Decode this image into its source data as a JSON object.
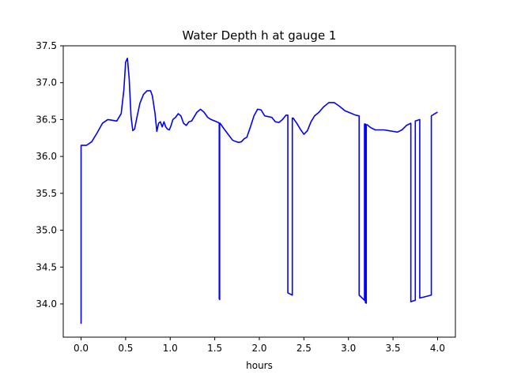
{
  "chart_data": {
    "type": "line",
    "title": "Water Depth h at gauge 1",
    "xlabel": "hours",
    "ylabel": "",
    "xlim": [
      -0.2,
      4.2
    ],
    "ylim": [
      33.55,
      37.5
    ],
    "xticks": [
      0.0,
      0.5,
      1.0,
      1.5,
      2.0,
      2.5,
      3.0,
      3.5,
      4.0
    ],
    "xtick_labels": [
      "0.0",
      "0.5",
      "1.0",
      "1.5",
      "2.0",
      "2.5",
      "3.0",
      "3.5",
      "4.0"
    ],
    "yticks": [
      34.0,
      34.5,
      35.0,
      35.5,
      36.0,
      36.5,
      37.0,
      37.5
    ],
    "ytick_labels": [
      "34.0",
      "34.5",
      "35.0",
      "35.5",
      "36.0",
      "36.5",
      "37.0",
      "37.5"
    ],
    "grid": false,
    "series": [
      {
        "color": "#0000ff",
        "x": [
          0.0,
          0.0,
          0.06,
          0.12,
          0.18,
          0.24,
          0.3,
          0.35,
          0.4,
          0.45,
          0.48,
          0.5,
          0.52,
          0.54,
          0.56,
          0.58,
          0.6,
          0.63,
          0.66,
          0.7,
          0.74,
          0.78,
          0.8,
          0.83,
          0.85,
          0.87,
          0.89,
          0.91,
          0.93,
          0.95,
          0.97,
          0.99,
          1.01,
          1.03,
          1.06,
          1.09,
          1.12,
          1.15,
          1.18,
          1.21,
          1.24,
          1.27,
          1.3,
          1.34,
          1.38,
          1.42,
          1.46,
          1.5,
          1.54,
          1.55,
          1.55,
          1.555,
          1.555,
          1.56,
          1.6,
          1.65,
          1.7,
          1.74,
          1.77,
          1.8,
          1.83,
          1.86,
          1.9,
          1.94,
          1.98,
          2.02,
          2.06,
          2.1,
          2.14,
          2.18,
          2.22,
          2.26,
          2.3,
          2.32,
          2.32,
          2.37,
          2.37,
          2.38,
          2.42,
          2.46,
          2.5,
          2.54,
          2.58,
          2.62,
          2.67,
          2.72,
          2.78,
          2.84,
          2.9,
          2.96,
          3.02,
          3.08,
          3.12,
          3.12,
          3.18,
          3.18,
          3.19,
          3.19,
          3.2,
          3.2,
          3.21,
          3.25,
          3.3,
          3.35,
          3.4,
          3.45,
          3.5,
          3.55,
          3.6,
          3.65,
          3.7,
          3.7,
          3.75,
          3.75,
          3.8,
          3.8,
          3.93,
          3.93,
          3.97,
          4.0
        ],
        "values": [
          33.73,
          36.15,
          36.15,
          36.2,
          36.32,
          36.45,
          36.5,
          36.49,
          36.48,
          36.58,
          36.9,
          37.28,
          37.33,
          37.05,
          36.55,
          36.35,
          36.37,
          36.55,
          36.72,
          36.84,
          36.89,
          36.89,
          36.82,
          36.58,
          36.34,
          36.45,
          36.47,
          36.4,
          36.47,
          36.4,
          36.37,
          36.36,
          36.42,
          36.5,
          36.53,
          36.58,
          36.55,
          36.45,
          36.42,
          36.47,
          36.48,
          36.54,
          36.6,
          36.64,
          36.6,
          36.53,
          36.5,
          36.48,
          36.46,
          36.45,
          34.07,
          34.06,
          36.45,
          36.45,
          36.38,
          36.3,
          36.22,
          36.2,
          36.19,
          36.2,
          36.24,
          36.26,
          36.4,
          36.55,
          36.64,
          36.63,
          36.55,
          36.54,
          36.53,
          36.47,
          36.46,
          36.5,
          36.56,
          36.56,
          34.15,
          34.12,
          36.52,
          36.52,
          36.45,
          36.37,
          36.3,
          36.35,
          36.47,
          36.55,
          36.6,
          36.67,
          36.73,
          36.73,
          36.68,
          36.62,
          36.59,
          36.56,
          36.55,
          34.12,
          34.05,
          36.44,
          36.44,
          34.02,
          34.01,
          36.43,
          36.43,
          36.39,
          36.36,
          36.36,
          36.36,
          36.35,
          36.34,
          36.33,
          36.36,
          36.42,
          36.45,
          34.03,
          34.05,
          36.48,
          36.5,
          34.08,
          34.12,
          36.55,
          36.58,
          36.6
        ]
      }
    ]
  }
}
